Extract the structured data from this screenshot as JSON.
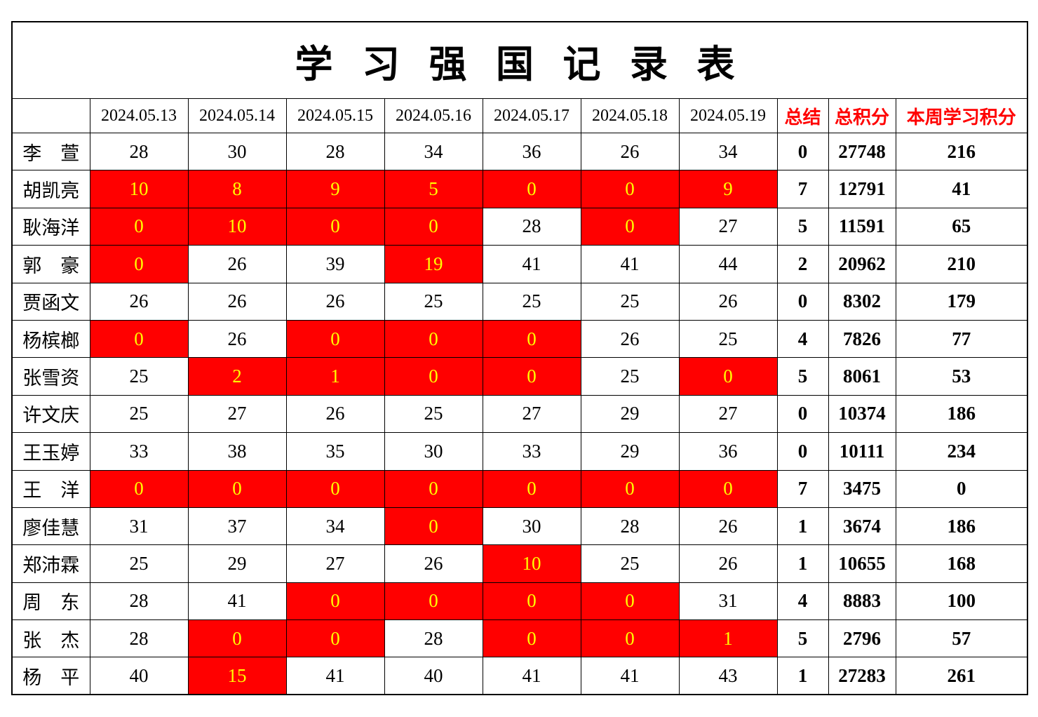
{
  "title": "学 习 强 国 记 录 表",
  "columns": {
    "name_header": "",
    "dates": [
      "2024.05.13",
      "2024.05.14",
      "2024.05.15",
      "2024.05.16",
      "2024.05.17",
      "2024.05.18",
      "2024.05.19"
    ],
    "summary": "总结",
    "total": "总积分",
    "week": "本周学习积分"
  },
  "colors": {
    "highlight_bg": "#ff0000",
    "highlight_text": "#ffff00",
    "accent_text": "#ff0000",
    "grid": "#000000"
  },
  "rows": [
    {
      "name": "李　萱",
      "scores": [
        "28",
        "30",
        "28",
        "34",
        "36",
        "26",
        "34"
      ],
      "highlights": [
        0,
        0,
        0,
        0,
        0,
        0,
        0
      ],
      "summary": "0",
      "total": "27748",
      "week": "216"
    },
    {
      "name": "胡凯亮",
      "scores": [
        "10",
        "8",
        "9",
        "5",
        "0",
        "0",
        "9"
      ],
      "highlights": [
        1,
        1,
        1,
        1,
        1,
        1,
        1
      ],
      "summary": "7",
      "total": "12791",
      "week": "41"
    },
    {
      "name": "耿海洋",
      "scores": [
        "0",
        "10",
        "0",
        "0",
        "28",
        "0",
        "27"
      ],
      "highlights": [
        1,
        1,
        1,
        1,
        0,
        1,
        0
      ],
      "summary": "5",
      "total": "11591",
      "week": "65"
    },
    {
      "name": "郭　豪",
      "scores": [
        "0",
        "26",
        "39",
        "19",
        "41",
        "41",
        "44"
      ],
      "highlights": [
        1,
        0,
        0,
        1,
        0,
        0,
        0
      ],
      "summary": "2",
      "total": "20962",
      "week": "210"
    },
    {
      "name": "贾函文",
      "scores": [
        "26",
        "26",
        "26",
        "25",
        "25",
        "25",
        "26"
      ],
      "highlights": [
        0,
        0,
        0,
        0,
        0,
        0,
        0
      ],
      "summary": "0",
      "total": "8302",
      "week": "179"
    },
    {
      "name": "杨槟榔",
      "scores": [
        "0",
        "26",
        "0",
        "0",
        "0",
        "26",
        "25"
      ],
      "highlights": [
        1,
        0,
        1,
        1,
        1,
        0,
        0
      ],
      "summary": "4",
      "total": "7826",
      "week": "77"
    },
    {
      "name": "张雪资",
      "scores": [
        "25",
        "2",
        "1",
        "0",
        "0",
        "25",
        "0"
      ],
      "highlights": [
        0,
        1,
        1,
        1,
        1,
        0,
        1
      ],
      "summary": "5",
      "total": "8061",
      "week": "53"
    },
    {
      "name": "许文庆",
      "scores": [
        "25",
        "27",
        "26",
        "25",
        "27",
        "29",
        "27"
      ],
      "highlights": [
        0,
        0,
        0,
        0,
        0,
        0,
        0
      ],
      "summary": "0",
      "total": "10374",
      "week": "186"
    },
    {
      "name": "王玉婷",
      "scores": [
        "33",
        "38",
        "35",
        "30",
        "33",
        "29",
        "36"
      ],
      "highlights": [
        0,
        0,
        0,
        0,
        0,
        0,
        0
      ],
      "summary": "0",
      "total": "10111",
      "week": "234"
    },
    {
      "name": "王　洋",
      "scores": [
        "0",
        "0",
        "0",
        "0",
        "0",
        "0",
        "0"
      ],
      "highlights": [
        1,
        1,
        1,
        1,
        1,
        1,
        1
      ],
      "summary": "7",
      "total": "3475",
      "week": "0"
    },
    {
      "name": "廖佳慧",
      "scores": [
        "31",
        "37",
        "34",
        "0",
        "30",
        "28",
        "26"
      ],
      "highlights": [
        0,
        0,
        0,
        1,
        0,
        0,
        0
      ],
      "summary": "1",
      "total": "3674",
      "week": "186"
    },
    {
      "name": "郑沛霖",
      "scores": [
        "25",
        "29",
        "27",
        "26",
        "10",
        "25",
        "26"
      ],
      "highlights": [
        0,
        0,
        0,
        0,
        1,
        0,
        0
      ],
      "summary": "1",
      "total": "10655",
      "week": "168"
    },
    {
      "name": "周　东",
      "scores": [
        "28",
        "41",
        "0",
        "0",
        "0",
        "0",
        "31"
      ],
      "highlights": [
        0,
        0,
        1,
        1,
        1,
        1,
        0
      ],
      "summary": "4",
      "total": "8883",
      "week": "100"
    },
    {
      "name": "张　杰",
      "scores": [
        "28",
        "0",
        "0",
        "28",
        "0",
        "0",
        "1"
      ],
      "highlights": [
        0,
        1,
        1,
        0,
        1,
        1,
        1
      ],
      "summary": "5",
      "total": "2796",
      "week": "57"
    },
    {
      "name": "杨　平",
      "scores": [
        "40",
        "15",
        "41",
        "40",
        "41",
        "41",
        "43"
      ],
      "highlights": [
        0,
        1,
        0,
        0,
        0,
        0,
        0
      ],
      "summary": "1",
      "total": "27283",
      "week": "261"
    }
  ]
}
